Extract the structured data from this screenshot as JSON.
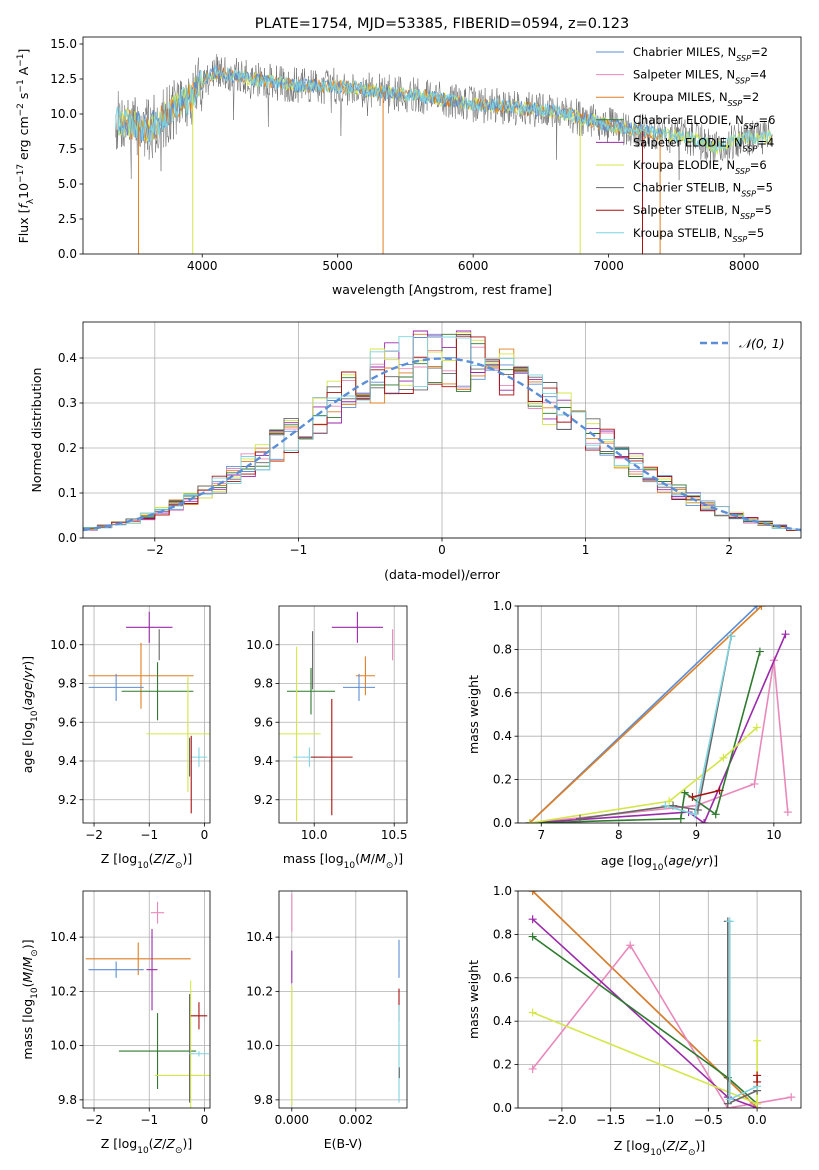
{
  "colors": {
    "chabrier_miles": "#5b8ed6",
    "salpeter_miles": "#e888bb",
    "kroupa_miles": "#e07e22",
    "chabrier_elodie": "#2f7a2f",
    "salpeter_elodie": "#9a2aaa",
    "kroupa_elodie": "#d4e64a",
    "chabrier_stelib": "#666666",
    "salpeter_stelib": "#aa1111",
    "kroupa_stelib": "#7fd4e0"
  },
  "chart_data": [
    {
      "id": "spectrum",
      "type": "line",
      "title": "PLATE=1754, MJD=53385, FIBERID=0594, z=0.123",
      "xlabel": "wavelength [Angstrom, rest frame]",
      "ylabel": "Flux [fλ10⁻¹⁷ erg cm⁻² s⁻¹ A⁻¹]",
      "xlim": [
        3120,
        8420
      ],
      "ylim": [
        0,
        15.5
      ],
      "xticks": [
        4000,
        5000,
        6000,
        7000,
        8000
      ],
      "yticks": [
        "0.0",
        "2.5",
        "5.0",
        "7.5",
        "10.0",
        "12.5",
        "15.0"
      ],
      "grid": false,
      "legend_position": "right",
      "legend": [
        {
          "name": "Chabrier MILES, N_SSP=2",
          "main": "Chabrier MILES, N",
          "sub": "SSP",
          "val": "=2",
          "color_key": "chabrier_miles"
        },
        {
          "name": "Salpeter MILES, N_SSP=4",
          "main": "Salpeter MILES, N",
          "sub": "SSP",
          "val": "=4",
          "color_key": "salpeter_miles"
        },
        {
          "name": "Kroupa MILES, N_SSP=2",
          "main": "Kroupa MILES, N",
          "sub": "SSP",
          "val": "=2",
          "color_key": "kroupa_miles"
        },
        {
          "name": "Chabrier ELODIE, N_SSP=6",
          "main": "Chabrier ELODIE, N",
          "sub": "SSP",
          "val": "=6",
          "color_key": "chabrier_elodie"
        },
        {
          "name": "Salpeter ELODIE, N_SSP=4",
          "main": "Salpeter ELODIE, N",
          "sub": "SSP",
          "val": "=4",
          "color_key": "salpeter_elodie"
        },
        {
          "name": "Kroupa ELODIE, N_SSP=6",
          "main": "Kroupa ELODIE, N",
          "sub": "SSP",
          "val": "=6",
          "color_key": "kroupa_elodie"
        },
        {
          "name": "Chabrier STELIB, N_SSP=5",
          "main": "Chabrier STELIB, N",
          "sub": "SSP",
          "val": "=5",
          "color_key": "chabrier_stelib"
        },
        {
          "name": "Salpeter STELIB, N_SSP=5",
          "main": "Salpeter STELIB, N",
          "sub": "SSP",
          "val": "=5",
          "color_key": "salpeter_stelib"
        },
        {
          "name": "Kroupa STELIB, N_SSP=5",
          "main": "Kroupa STELIB, N",
          "sub": "SSP",
          "val": "=5",
          "color_key": "kroupa_stelib"
        }
      ],
      "continuum": [
        [
          3400,
          9.5
        ],
        [
          3600,
          8.8
        ],
        [
          3700,
          9.6
        ],
        [
          3800,
          10.5
        ],
        [
          3900,
          11.0
        ],
        [
          4000,
          12.3
        ],
        [
          4100,
          13.0
        ],
        [
          4300,
          12.6
        ],
        [
          4500,
          12.3
        ],
        [
          4700,
          12.0
        ],
        [
          5000,
          12.0
        ],
        [
          5300,
          11.6
        ],
        [
          5600,
          11.3
        ],
        [
          6000,
          10.7
        ],
        [
          6300,
          10.5
        ],
        [
          6600,
          10.2
        ],
        [
          7000,
          9.2
        ],
        [
          7300,
          8.7
        ],
        [
          7600,
          8.3
        ],
        [
          7800,
          7.6
        ],
        [
          8000,
          8.3
        ],
        [
          8200,
          8.4
        ]
      ],
      "dropouts": [
        {
          "x": 3530,
          "color_key": "kroupa_miles"
        },
        {
          "x": 3930,
          "color_key": "kroupa_elodie"
        },
        {
          "x": 5335,
          "color_key": "kroupa_miles"
        },
        {
          "x": 6790,
          "color_key": "kroupa_elodie"
        },
        {
          "x": 7380,
          "color_key": "kroupa_miles"
        },
        {
          "x": 7250,
          "color_key": "salpeter_stelib"
        }
      ]
    },
    {
      "id": "residuals",
      "type": "line",
      "xlabel": "(data-model)/error",
      "ylabel": "Normed distribution",
      "xlim": [
        -2.5,
        2.5
      ],
      "ylim": [
        0,
        0.48
      ],
      "xticks": [
        "−2",
        "−1",
        "0",
        "1",
        "2"
      ],
      "yticks": [
        "0.0",
        "0.1",
        "0.2",
        "0.3",
        "0.4"
      ],
      "grid": true,
      "legend_position": "top-right",
      "legend": [
        {
          "name": "N(0,1)",
          "label": "𝒩(0, 1)",
          "color": "#5b8ed6"
        }
      ]
    },
    {
      "id": "age_vs_Z",
      "type": "scatter",
      "xlabel": "Z [log₁₀(Z/Z⊙)]",
      "ylabel": "age  [log₁₀(age/yr)]",
      "xlim": [
        -2.2,
        0.1
      ],
      "ylim": [
        9.08,
        10.2
      ],
      "xticks": [
        "−2",
        "−1",
        "0"
      ],
      "yticks": [
        "9.2",
        "9.4",
        "9.6",
        "9.8",
        "10.0"
      ],
      "grid": true,
      "points": [
        {
          "color_key": "salpeter_elodie",
          "x": -1.0,
          "y": 10.09,
          "xerr": 0.42,
          "yerr": 0.08
        },
        {
          "color_key": "chabrier_stelib",
          "x": -0.82,
          "y": 10.0,
          "xerr": 0.0,
          "yerr": 0.08
        },
        {
          "color_key": "kroupa_miles",
          "x": -1.15,
          "y": 9.84,
          "xerr": 0.95,
          "yerr": 0.17
        },
        {
          "color_key": "chabrier_miles",
          "x": -1.6,
          "y": 9.78,
          "xerr": 0.5,
          "yerr": 0.07
        },
        {
          "color_key": "chabrier_elodie",
          "x": -0.85,
          "y": 9.76,
          "xerr": 0.65,
          "yerr": 0.15
        },
        {
          "color_key": "kroupa_elodie",
          "x": -0.3,
          "y": 9.54,
          "xerr": 0.75,
          "yerr": 0.3
        },
        {
          "color_key": "chabrier_stelib",
          "x": -0.27,
          "y": 9.42,
          "xerr": 0.0,
          "yerr": 0.1
        },
        {
          "color_key": "kroupa_stelib",
          "x": -0.1,
          "y": 9.42,
          "xerr": 0.15,
          "yerr": 0.05
        },
        {
          "color_key": "salpeter_stelib",
          "x": -0.24,
          "y": 9.33,
          "xerr": 0.0,
          "yerr": 0.2
        }
      ]
    },
    {
      "id": "age_vs_mass",
      "type": "scatter",
      "xlabel": "mass [log₁₀(M/M⊙)]",
      "ylabel": "",
      "xlim": [
        9.78,
        10.58
      ],
      "ylim": [
        9.08,
        10.2
      ],
      "xticks": [
        "10.0",
        "10.5"
      ],
      "yticks": [
        "9.2",
        "9.4",
        "9.6",
        "9.8",
        "10.0"
      ],
      "grid": true,
      "points": [
        {
          "color_key": "salpeter_elodie",
          "x": 10.27,
          "y": 10.09,
          "xerr": 0.16,
          "yerr": 0.08
        },
        {
          "color_key": "salpeter_miles",
          "x": 10.49,
          "y": 10.0,
          "xerr": 0.0,
          "yerr": 0.08
        },
        {
          "color_key": "chabrier_stelib",
          "x": 9.99,
          "y": 9.92,
          "xerr": 0.0,
          "yerr": 0.15
        },
        {
          "color_key": "kroupa_miles",
          "x": 10.32,
          "y": 9.84,
          "xerr": 0.06,
          "yerr": 0.1
        },
        {
          "color_key": "chabrier_miles",
          "x": 10.28,
          "y": 9.78,
          "xerr": 0.1,
          "yerr": 0.07
        },
        {
          "color_key": "chabrier_elodie",
          "x": 9.98,
          "y": 9.76,
          "xerr": 0.15,
          "yerr": 0.12
        },
        {
          "color_key": "kroupa_elodie",
          "x": 9.89,
          "y": 9.54,
          "xerr": 0.15,
          "yerr": 0.45
        },
        {
          "color_key": "kroupa_stelib",
          "x": 9.97,
          "y": 9.42,
          "xerr": 0.1,
          "yerr": 0.05
        },
        {
          "color_key": "salpeter_stelib",
          "x": 10.11,
          "y": 9.42,
          "xerr": 0.13,
          "yerr": 0.3
        }
      ]
    },
    {
      "id": "weight_vs_age",
      "type": "line",
      "xlabel": "age  [log₁₀(age/yr)]",
      "ylabel": "mass weight",
      "xlim": [
        6.7,
        10.35
      ],
      "ylim": [
        0,
        1
      ],
      "xticks": [
        "7",
        "8",
        "9",
        "10"
      ],
      "yticks": [
        "0.0",
        "0.2",
        "0.4",
        "0.6",
        "0.8",
        "1.0"
      ],
      "grid": true,
      "series": [
        {
          "color_key": "chabrier_miles",
          "points": [
            [
              6.85,
              0.0
            ],
            [
              9.78,
              1.0
            ]
          ]
        },
        {
          "color_key": "kroupa_miles",
          "points": [
            [
              6.85,
              0.0
            ],
            [
              9.84,
              1.0
            ]
          ]
        },
        {
          "color_key": "salpeter_miles",
          "points": [
            [
              6.85,
              0.0
            ],
            [
              9.0,
              0.08
            ],
            [
              9.75,
              0.18
            ],
            [
              10.0,
              0.75
            ],
            [
              10.18,
              0.05
            ]
          ]
        },
        {
          "color_key": "salpeter_elodie",
          "points": [
            [
              6.85,
              0.0
            ],
            [
              8.9,
              0.05
            ],
            [
              9.1,
              0.0
            ],
            [
              10.15,
              0.87
            ]
          ]
        },
        {
          "color_key": "chabrier_elodie",
          "points": [
            [
              6.85,
              0.0
            ],
            [
              8.8,
              0.02
            ],
            [
              8.85,
              0.14
            ],
            [
              9.25,
              0.04
            ],
            [
              9.82,
              0.79
            ]
          ]
        },
        {
          "color_key": "kroupa_elodie",
          "points": [
            [
              6.85,
              0.0
            ],
            [
              8.65,
              0.1
            ],
            [
              9.35,
              0.3
            ],
            [
              9.78,
              0.44
            ]
          ]
        },
        {
          "color_key": "chabrier_stelib",
          "points": [
            [
              7.5,
              0.02
            ],
            [
              8.7,
              0.08
            ],
            [
              9.02,
              0.06
            ],
            [
              9.45,
              0.86
            ]
          ]
        },
        {
          "color_key": "kroupa_stelib",
          "points": [
            [
              8.6,
              0.08
            ],
            [
              8.98,
              0.04
            ],
            [
              9.45,
              0.86
            ]
          ]
        },
        {
          "color_key": "salpeter_stelib",
          "points": [
            [
              8.95,
              0.12
            ],
            [
              9.3,
              0.15
            ]
          ]
        }
      ]
    },
    {
      "id": "mass_vs_Z",
      "type": "scatter",
      "xlabel": "Z [log₁₀(Z/Z⊙)]",
      "ylabel": "mass [log₁₀(M/M⊙)]",
      "xlim": [
        -2.2,
        0.1
      ],
      "ylim": [
        9.77,
        10.57
      ],
      "xticks": [
        "−2",
        "−1",
        "0"
      ],
      "yticks": [
        "9.8",
        "10.0",
        "10.2",
        "10.4"
      ],
      "grid": true,
      "points": [
        {
          "color_key": "salpeter_miles",
          "x": -0.85,
          "y": 10.49,
          "xerr": 0.12,
          "yerr": 0.04
        },
        {
          "color_key": "kroupa_miles",
          "x": -1.2,
          "y": 10.32,
          "xerr": 0.95,
          "yerr": 0.06
        },
        {
          "color_key": "chabrier_miles",
          "x": -1.6,
          "y": 10.28,
          "xerr": 0.5,
          "yerr": 0.03
        },
        {
          "color_key": "salpeter_elodie",
          "x": -0.95,
          "y": 10.28,
          "xerr": 0.1,
          "yerr": 0.15
        },
        {
          "color_key": "chabrier_elodie",
          "x": -0.85,
          "y": 9.98,
          "xerr": 0.7,
          "yerr": 0.14
        },
        {
          "color_key": "kroupa_elodie",
          "x": -0.25,
          "y": 9.89,
          "xerr": 0.65,
          "yerr": 0.35
        },
        {
          "color_key": "salpeter_stelib",
          "x": -0.1,
          "y": 10.11,
          "xerr": 0.15,
          "yerr": 0.05
        },
        {
          "color_key": "chabrier_stelib",
          "x": -0.27,
          "y": 9.99,
          "xerr": 0.0,
          "yerr": 0.2
        },
        {
          "color_key": "kroupa_stelib",
          "x": -0.1,
          "y": 9.97,
          "xerr": 0.18,
          "yerr": 0.01
        }
      ]
    },
    {
      "id": "mass_vs_EBV",
      "type": "scatter",
      "xlabel": "E(B-V)",
      "ylabel": "",
      "xlim": [
        -0.0004,
        0.0036
      ],
      "ylim": [
        9.77,
        10.57
      ],
      "xticks": [
        "0.000",
        "0.002"
      ],
      "yticks": [
        "9.8",
        "10.0",
        "10.2",
        "10.4"
      ],
      "grid": true,
      "points": [
        {
          "color_key": "salpeter_miles",
          "x": 0.0,
          "y": 10.49,
          "xerr": 0.0,
          "yerr": 0.07
        },
        {
          "color_key": "salpeter_elodie",
          "x": 0.0,
          "y": 10.29,
          "xerr": 0.0,
          "yerr": 0.06
        },
        {
          "color_key": "kroupa_elodie",
          "x": 0.0,
          "y": 10.0,
          "xerr": 0.0,
          "yerr": 0.22
        },
        {
          "color_key": "chabrier_miles",
          "x": 0.00335,
          "y": 10.32,
          "xerr": 0.0,
          "yerr": 0.07
        },
        {
          "color_key": "salpeter_stelib",
          "x": 0.00335,
          "y": 10.15,
          "xerr": 0.0,
          "yerr": 0.06
        },
        {
          "color_key": "kroupa_stelib",
          "x": 0.00335,
          "y": 9.97,
          "xerr": 0.0,
          "yerr": 0.18
        },
        {
          "color_key": "chabrier_stelib",
          "x": 0.00336,
          "y": 9.9,
          "xerr": 0.0,
          "yerr": 0.02
        }
      ]
    },
    {
      "id": "weight_vs_Z",
      "type": "line",
      "xlabel": "Z [log₁₀(Z/Z⊙)]",
      "ylabel": "mass weight",
      "xlim": [
        -2.45,
        0.45
      ],
      "ylim": [
        0,
        1
      ],
      "xticks": [
        "−2.0",
        "−1.5",
        "−1.0",
        "−0.5",
        "0.0"
      ],
      "yticks": [
        "0.0",
        "0.2",
        "0.4",
        "0.6",
        "0.8",
        "1.0"
      ],
      "grid": true,
      "series": [
        {
          "color_key": "chabrier_miles",
          "points": [
            [
              -2.3,
              1.0
            ],
            [
              0.0,
              0.0
            ]
          ]
        },
        {
          "color_key": "kroupa_miles",
          "points": [
            [
              -2.3,
              1.0
            ],
            [
              0.0,
              0.0
            ]
          ]
        },
        {
          "color_key": "salpeter_miles",
          "points": [
            [
              -2.3,
              0.18
            ],
            [
              -1.3,
              0.75
            ],
            [
              -0.3,
              0.0
            ],
            [
              0.35,
              0.05
            ]
          ]
        },
        {
          "color_key": "salpeter_elodie",
          "points": [
            [
              -2.3,
              0.87
            ],
            [
              -0.3,
              0.05
            ],
            [
              0.0,
              0.0
            ]
          ]
        },
        {
          "color_key": "chabrier_elodie",
          "points": [
            [
              -2.3,
              0.79
            ],
            [
              -0.3,
              0.14
            ],
            [
              0.0,
              0.02
            ]
          ]
        },
        {
          "color_key": "kroupa_elodie",
          "points": [
            [
              -2.3,
              0.44
            ],
            [
              0.0,
              0.02
            ],
            [
              0.0,
              0.31
            ]
          ]
        },
        {
          "color_key": "chabrier_stelib",
          "points": [
            [
              -0.3,
              0.86
            ],
            [
              -0.3,
              0.02
            ],
            [
              0.0,
              0.08
            ]
          ]
        },
        {
          "color_key": "kroupa_stelib",
          "points": [
            [
              -0.28,
              0.86
            ],
            [
              -0.28,
              0.04
            ],
            [
              0.0,
              0.1
            ]
          ]
        },
        {
          "color_key": "salpeter_stelib",
          "points": [
            [
              0.0,
              0.12
            ],
            [
              0.0,
              0.15
            ]
          ]
        }
      ]
    }
  ]
}
